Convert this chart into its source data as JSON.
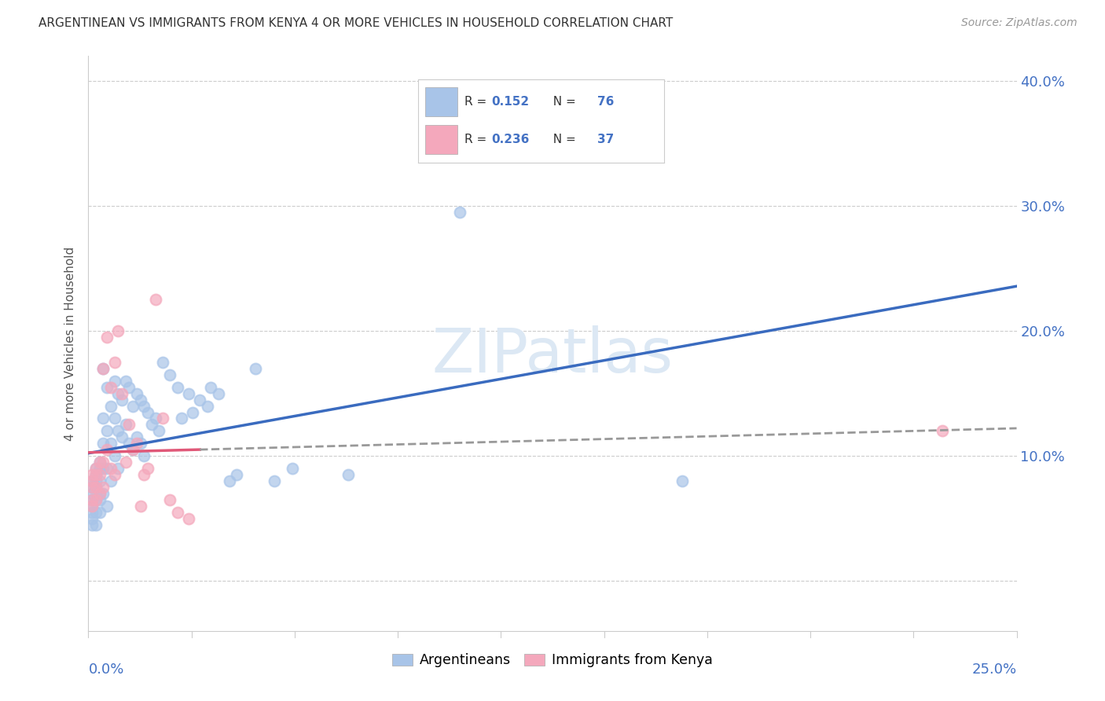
{
  "title": "ARGENTINEAN VS IMMIGRANTS FROM KENYA 4 OR MORE VEHICLES IN HOUSEHOLD CORRELATION CHART",
  "source": "Source: ZipAtlas.com",
  "ylabel": "4 or more Vehicles in Household",
  "xlim": [
    0.0,
    0.25
  ],
  "ylim": [
    -0.04,
    0.42
  ],
  "blue_color": "#a8c4e8",
  "pink_color": "#f4a8bc",
  "trend_blue": "#3a6bbf",
  "trend_pink": "#e05878",
  "watermark_color": "#dce8f4",
  "argentineans_x": [
    0.001,
    0.001,
    0.001,
    0.001,
    0.001,
    0.001,
    0.001,
    0.001,
    0.002,
    0.002,
    0.002,
    0.002,
    0.002,
    0.002,
    0.002,
    0.003,
    0.003,
    0.003,
    0.003,
    0.003,
    0.003,
    0.004,
    0.004,
    0.004,
    0.004,
    0.004,
    0.005,
    0.005,
    0.005,
    0.005,
    0.006,
    0.006,
    0.006,
    0.007,
    0.007,
    0.007,
    0.008,
    0.008,
    0.008,
    0.009,
    0.009,
    0.01,
    0.01,
    0.011,
    0.011,
    0.012,
    0.012,
    0.013,
    0.013,
    0.014,
    0.014,
    0.015,
    0.015,
    0.016,
    0.017,
    0.018,
    0.019,
    0.02,
    0.022,
    0.024,
    0.025,
    0.027,
    0.028,
    0.03,
    0.032,
    0.033,
    0.035,
    0.038,
    0.04,
    0.045,
    0.05,
    0.055,
    0.07,
    0.1,
    0.16
  ],
  "argentineans_y": [
    0.08,
    0.075,
    0.07,
    0.065,
    0.06,
    0.055,
    0.05,
    0.045,
    0.09,
    0.085,
    0.08,
    0.075,
    0.065,
    0.055,
    0.045,
    0.095,
    0.09,
    0.08,
    0.07,
    0.065,
    0.055,
    0.17,
    0.13,
    0.11,
    0.09,
    0.07,
    0.155,
    0.12,
    0.09,
    0.06,
    0.14,
    0.11,
    0.08,
    0.16,
    0.13,
    0.1,
    0.15,
    0.12,
    0.09,
    0.145,
    0.115,
    0.16,
    0.125,
    0.155,
    0.11,
    0.14,
    0.105,
    0.15,
    0.115,
    0.145,
    0.11,
    0.14,
    0.1,
    0.135,
    0.125,
    0.13,
    0.12,
    0.175,
    0.165,
    0.155,
    0.13,
    0.15,
    0.135,
    0.145,
    0.14,
    0.155,
    0.15,
    0.08,
    0.085,
    0.17,
    0.08,
    0.09,
    0.085,
    0.295,
    0.08
  ],
  "kenya_x": [
    0.001,
    0.001,
    0.001,
    0.001,
    0.001,
    0.002,
    0.002,
    0.002,
    0.002,
    0.003,
    0.003,
    0.003,
    0.004,
    0.004,
    0.004,
    0.005,
    0.005,
    0.006,
    0.006,
    0.007,
    0.007,
    0.008,
    0.009,
    0.01,
    0.011,
    0.012,
    0.013,
    0.014,
    0.015,
    0.016,
    0.018,
    0.02,
    0.022,
    0.024,
    0.027,
    0.23
  ],
  "kenya_y": [
    0.085,
    0.08,
    0.075,
    0.065,
    0.06,
    0.09,
    0.085,
    0.075,
    0.065,
    0.095,
    0.085,
    0.07,
    0.17,
    0.095,
    0.075,
    0.195,
    0.105,
    0.155,
    0.09,
    0.175,
    0.085,
    0.2,
    0.15,
    0.095,
    0.125,
    0.105,
    0.11,
    0.06,
    0.085,
    0.09,
    0.225,
    0.13,
    0.065,
    0.055,
    0.05,
    0.12
  ]
}
